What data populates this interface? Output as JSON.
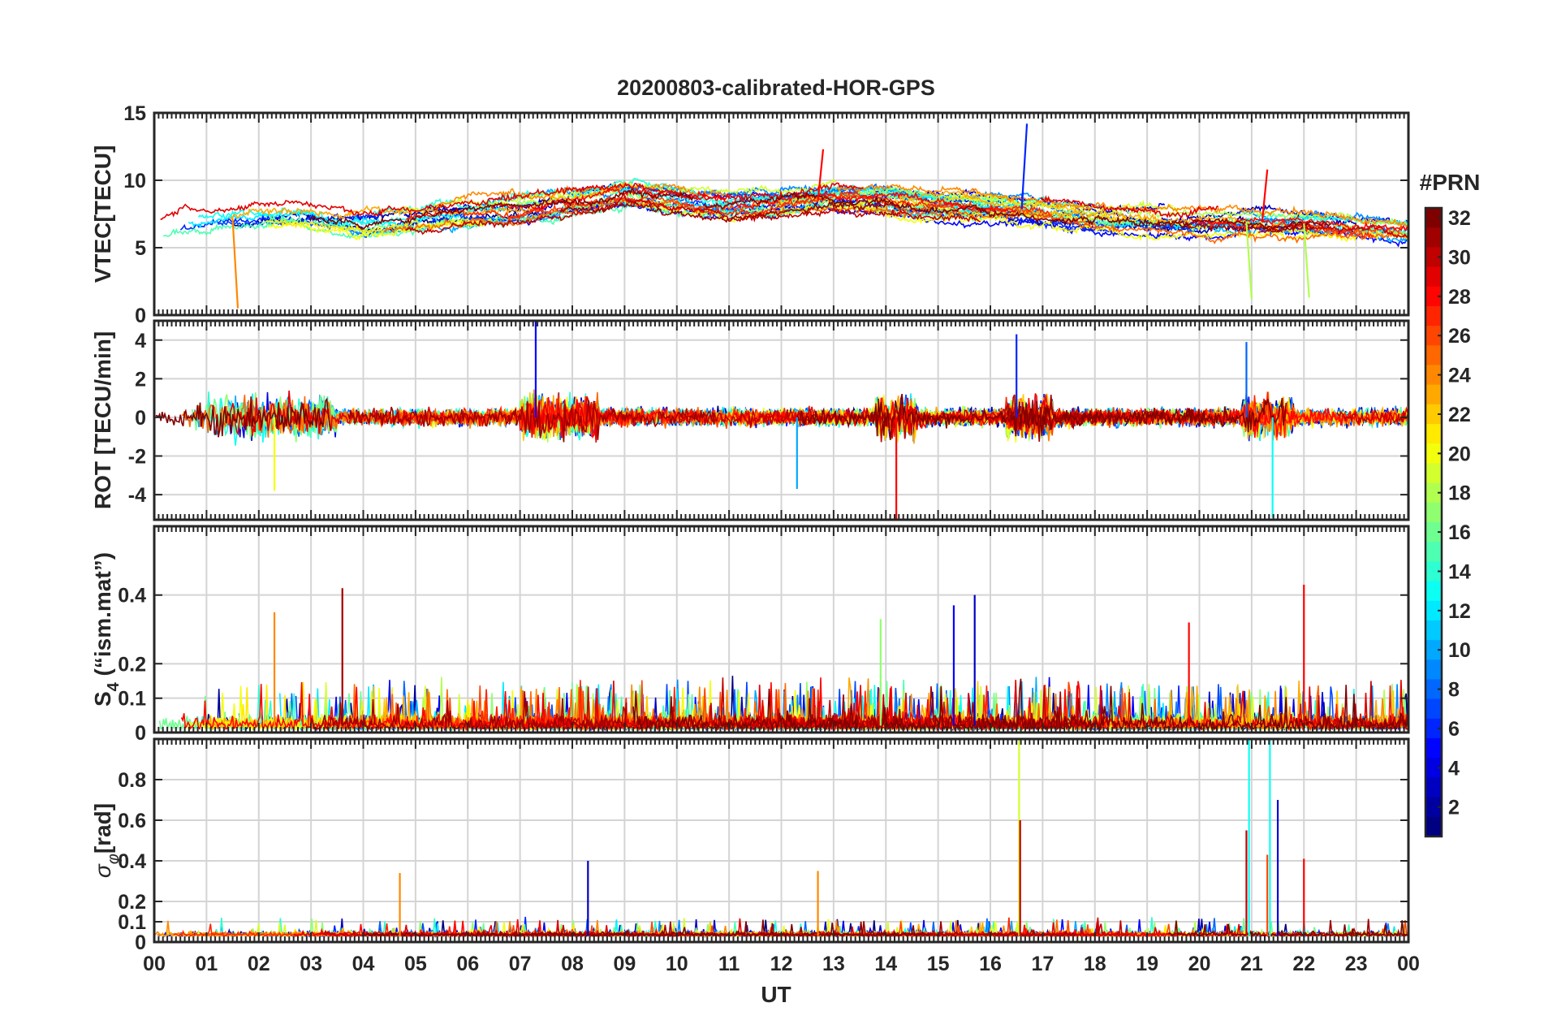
{
  "figure": {
    "title": "20200803-calibrated-HOR-GPS",
    "xlabel": "UT",
    "colorbar_label": "#PRN"
  },
  "chart_data": [
    {
      "type": "line",
      "panel": "vtec",
      "ylabel": "VTEC[TECU]",
      "ylim": [
        0,
        15
      ],
      "yticks": [
        0,
        5,
        10,
        15
      ],
      "xlim": [
        0,
        24
      ],
      "series_count": 31,
      "baseline": [
        6.5,
        7.0,
        7.3,
        7.2,
        6.8,
        7.2,
        7.5,
        7.7,
        8.3,
        8.8,
        8.5,
        8.0,
        8.2,
        8.6,
        8.4,
        8.2,
        8.0,
        7.8,
        7.2,
        7.0,
        6.8,
        6.9,
        6.8,
        6.5,
        6.3
      ],
      "events": [
        {
          "t": 1.5,
          "v": 0.5,
          "label": "PRN 24 dip"
        },
        {
          "t": 12.7,
          "v": 12.3,
          "label": "PRN 28 peak"
        },
        {
          "t": 16.6,
          "v": 14.2,
          "label": "PRN 6 peak"
        },
        {
          "t": 21.2,
          "v": 10.8,
          "label": "PRN 28 peak"
        },
        {
          "t": 20.9,
          "v": 1.2,
          "label": "PRN 18 dip"
        },
        {
          "t": 22.0,
          "v": 1.3,
          "label": "PRN 18 dip"
        }
      ]
    },
    {
      "type": "line",
      "panel": "rot",
      "ylabel": "ROT [TECU/min]",
      "ylim": [
        -5.3,
        5
      ],
      "yticks": [
        -4,
        -2,
        0,
        2,
        4
      ],
      "xlim": [
        0,
        24
      ],
      "spikes": [
        {
          "t": 7.3,
          "v": 5.0,
          "prn": 5
        },
        {
          "t": 14.2,
          "v": -5.3,
          "prn": 28
        },
        {
          "t": 16.5,
          "v": 4.3,
          "prn": 6
        },
        {
          "t": 21.4,
          "v": -5.2,
          "prn": 13
        },
        {
          "t": 20.9,
          "v": 3.9,
          "prn": 8
        },
        {
          "t": 2.3,
          "v": -3.8,
          "prn": 20
        },
        {
          "t": 12.3,
          "v": -3.7,
          "prn": 10
        }
      ]
    },
    {
      "type": "line",
      "panel": "s4",
      "ylabel": "S4 (\"ism.mat\")",
      "ylim": [
        0,
        0.6
      ],
      "yticks": [
        0,
        0.1,
        0.2,
        0.4
      ],
      "xlim": [
        0,
        24
      ],
      "spikes": [
        {
          "t": 3.6,
          "v": 0.42,
          "prn": 31
        },
        {
          "t": 2.3,
          "v": 0.35,
          "prn": 24
        },
        {
          "t": 15.3,
          "v": 0.37,
          "prn": 5
        },
        {
          "t": 15.7,
          "v": 0.4,
          "prn": 3
        },
        {
          "t": 22.0,
          "v": 0.43,
          "prn": 28
        },
        {
          "t": 19.8,
          "v": 0.32,
          "prn": 28
        },
        {
          "t": 13.9,
          "v": 0.33,
          "prn": 17
        }
      ]
    },
    {
      "type": "line",
      "panel": "sigma_phi",
      "ylabel": "σφ[rad]",
      "ylim": [
        0,
        1.0
      ],
      "yticks": [
        0,
        0.1,
        0.2,
        0.4,
        0.6,
        0.8
      ],
      "xlim": [
        0,
        24
      ],
      "spikes": [
        {
          "t": 16.55,
          "v": 1.0,
          "prn": 19
        },
        {
          "t": 16.57,
          "v": 0.6,
          "prn": 30
        },
        {
          "t": 20.95,
          "v": 1.0,
          "prn": 13
        },
        {
          "t": 21.35,
          "v": 1.0,
          "prn": 13
        },
        {
          "t": 20.9,
          "v": 0.55,
          "prn": 30
        },
        {
          "t": 21.5,
          "v": 0.7,
          "prn": 4
        },
        {
          "t": 21.3,
          "v": 0.43,
          "prn": 26
        },
        {
          "t": 22.0,
          "v": 0.41,
          "prn": 28
        },
        {
          "t": 8.3,
          "v": 0.4,
          "prn": 3
        },
        {
          "t": 4.7,
          "v": 0.34,
          "prn": 24
        },
        {
          "t": 12.7,
          "v": 0.35,
          "prn": 24
        }
      ]
    }
  ],
  "x_ticks": [
    "00",
    "01",
    "02",
    "03",
    "04",
    "05",
    "06",
    "07",
    "08",
    "09",
    "10",
    "11",
    "12",
    "13",
    "14",
    "15",
    "16",
    "17",
    "18",
    "19",
    "20",
    "21",
    "22",
    "23",
    "00"
  ],
  "colorbar": {
    "min": 1,
    "max": 32,
    "ticks": [
      2,
      4,
      6,
      8,
      10,
      12,
      14,
      16,
      18,
      20,
      22,
      24,
      26,
      28,
      30,
      32
    ]
  }
}
